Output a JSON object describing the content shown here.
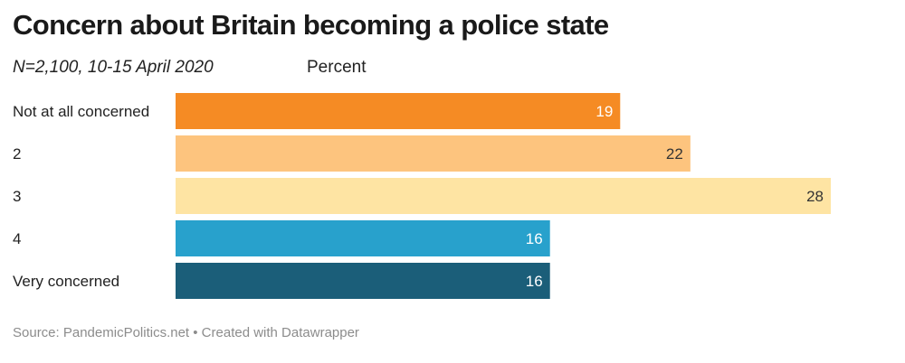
{
  "chart_data": {
    "type": "bar",
    "orientation": "horizontal",
    "title": "Concern about Britain becoming a police state",
    "subtitle": "N=2,100, 10-15 April 2020",
    "unit_label": "Percent",
    "categories": [
      "Not at all concerned",
      "2",
      "3",
      "4",
      "Very concerned"
    ],
    "values": [
      19,
      22,
      28,
      16,
      16
    ],
    "colors": [
      "#f58b24",
      "#fdc47e",
      "#fee4a3",
      "#28a1cc",
      "#1b5e79"
    ],
    "value_label_colors": [
      "#ffffff",
      "#333333",
      "#333333",
      "#ffffff",
      "#ffffff"
    ],
    "xlim": [
      0,
      28
    ],
    "grid": false,
    "legend": "none"
  },
  "footer": {
    "source": "Source: PandemicPolitics.net • Created with Datawrapper"
  }
}
